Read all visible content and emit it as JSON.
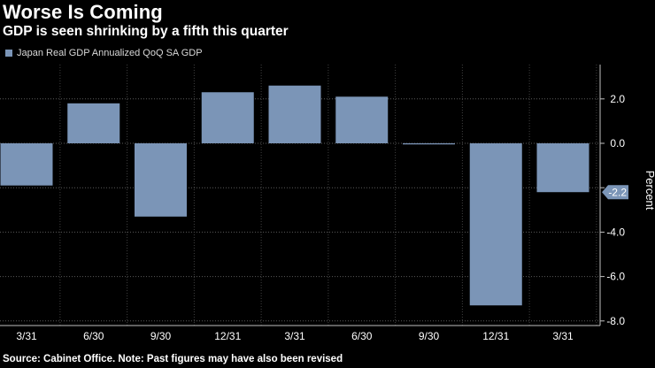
{
  "title": "Worse Is Coming",
  "subtitle": "GDP is seen shrinking by a fifth this quarter",
  "legend": {
    "label": "Japan Real GDP Annualized QoQ SA GDP",
    "color": "#7b95b7"
  },
  "source": "Source: Cabinet Office. Note: Past figures may have also been revised",
  "chart_data": {
    "type": "bar",
    "title": "Worse Is Coming",
    "subtitle": "GDP is seen shrinking by a fifth this quarter",
    "xlabel": "",
    "ylabel": "Percent",
    "ylim": [
      -8.0,
      3.0
    ],
    "yticks": [
      2.0,
      0.0,
      -2.0,
      -4.0,
      -6.0,
      -8.0
    ],
    "ytick_labels": [
      "2.0",
      "0.0",
      "",
      "-4.0",
      "-6.0",
      "-8.0"
    ],
    "grid": true,
    "categories": [
      "3/31",
      "6/30",
      "9/30",
      "12/31",
      "3/31",
      "6/30",
      "9/30",
      "12/31",
      "3/31"
    ],
    "series": [
      {
        "name": "Japan Real GDP Annualized QoQ SA GDP",
        "values": [
          -1.9,
          1.8,
          -3.3,
          2.3,
          2.6,
          2.1,
          -0.05,
          -7.3,
          -2.2
        ]
      }
    ],
    "last_value_label": "-2.2",
    "bar_color": "#7b95b7",
    "label_color": "#7b95b7"
  }
}
